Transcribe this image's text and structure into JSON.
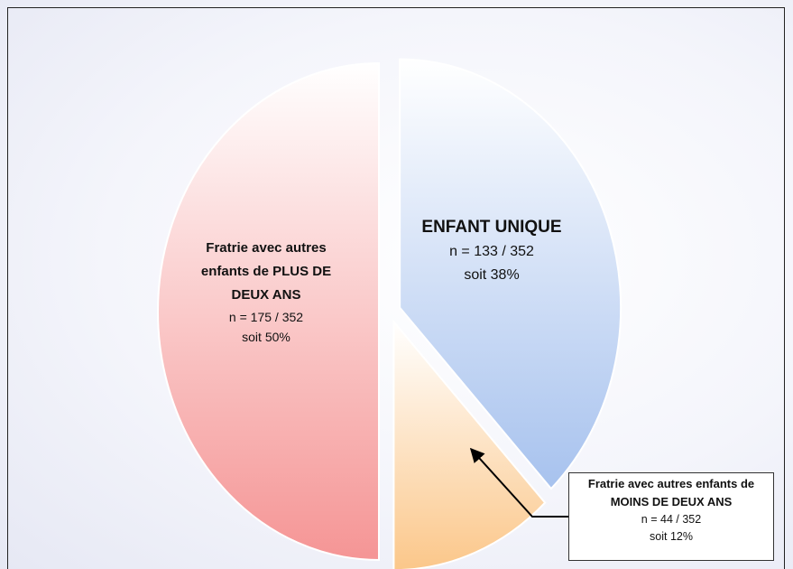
{
  "chart_data": {
    "type": "pie",
    "categories": [
      "ENFANT UNIQUE",
      "Fratrie avec autres enfants de MOINS DE DEUX ANS",
      "Fratrie avec autres enfants de PLUS DE DEUX ANS"
    ],
    "values": [
      38,
      12,
      50
    ],
    "value_labels": [
      "soit 38%",
      "soit 12%",
      "soit 50%"
    ],
    "count_labels": [
      "n = 133 / 352",
      "n = 44 / 352",
      "n = 175 / 352"
    ],
    "colors": [
      "#a7c2ee",
      "#fbc78a",
      "#f59595"
    ]
  }
}
